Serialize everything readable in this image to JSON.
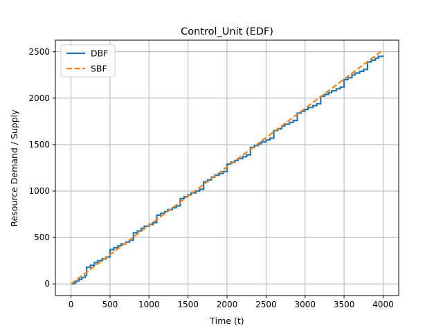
{
  "chart_data": {
    "type": "line",
    "title": "Control_Unit (EDF)",
    "xlabel": "Time (t)",
    "ylabel": "Resource Demand / Supply",
    "xlim": [
      -200,
      4200
    ],
    "ylim": [
      -125,
      2625
    ],
    "xticks": [
      0,
      500,
      1000,
      1500,
      2000,
      2500,
      3000,
      3500,
      4000
    ],
    "yticks": [
      0,
      500,
      1000,
      1500,
      2000,
      2500
    ],
    "grid": true,
    "legend_position": "top-left",
    "series": [
      {
        "name": "DBF",
        "color": "#1f77b4",
        "style": "solid-step",
        "x": [
          0,
          40,
          60,
          100,
          140,
          180,
          200,
          250,
          300,
          340,
          400,
          450,
          500,
          550,
          600,
          640,
          700,
          750,
          800,
          850,
          900,
          940,
          1000,
          1050,
          1100,
          1150,
          1200,
          1240,
          1300,
          1350,
          1400,
          1450,
          1500,
          1540,
          1600,
          1650,
          1700,
          1750,
          1800,
          1840,
          1900,
          1950,
          2000,
          2050,
          2100,
          2140,
          2200,
          2250,
          2300,
          2350,
          2400,
          2440,
          2500,
          2550,
          2600,
          2650,
          2700,
          2740,
          2800,
          2850,
          2900,
          2950,
          3000,
          3040,
          3100,
          3150,
          3200,
          3250,
          3300,
          3340,
          3400,
          3450,
          3500,
          3550,
          3600,
          3640,
          3700,
          3750,
          3800,
          3850,
          3900,
          3940,
          4000
        ],
        "y": [
          0,
          10,
          30,
          50,
          70,
          90,
          180,
          200,
          230,
          250,
          270,
          290,
          370,
          390,
          410,
          430,
          450,
          470,
          550,
          570,
          600,
          620,
          640,
          660,
          740,
          760,
          780,
          800,
          820,
          840,
          920,
          940,
          960,
          980,
          1000,
          1020,
          1100,
          1120,
          1150,
          1170,
          1190,
          1210,
          1290,
          1310,
          1330,
          1350,
          1370,
          1390,
          1470,
          1490,
          1510,
          1530,
          1550,
          1570,
          1650,
          1670,
          1700,
          1720,
          1740,
          1760,
          1840,
          1860,
          1880,
          1900,
          1920,
          1940,
          2020,
          2040,
          2060,
          2080,
          2100,
          2120,
          2200,
          2220,
          2250,
          2270,
          2290,
          2310,
          2390,
          2410,
          2430,
          2450,
          2460
        ]
      },
      {
        "name": "SBF",
        "color": "#ff7f0e",
        "style": "dashed",
        "x": [
          0,
          4000
        ],
        "y": [
          0,
          2520
        ]
      }
    ]
  }
}
